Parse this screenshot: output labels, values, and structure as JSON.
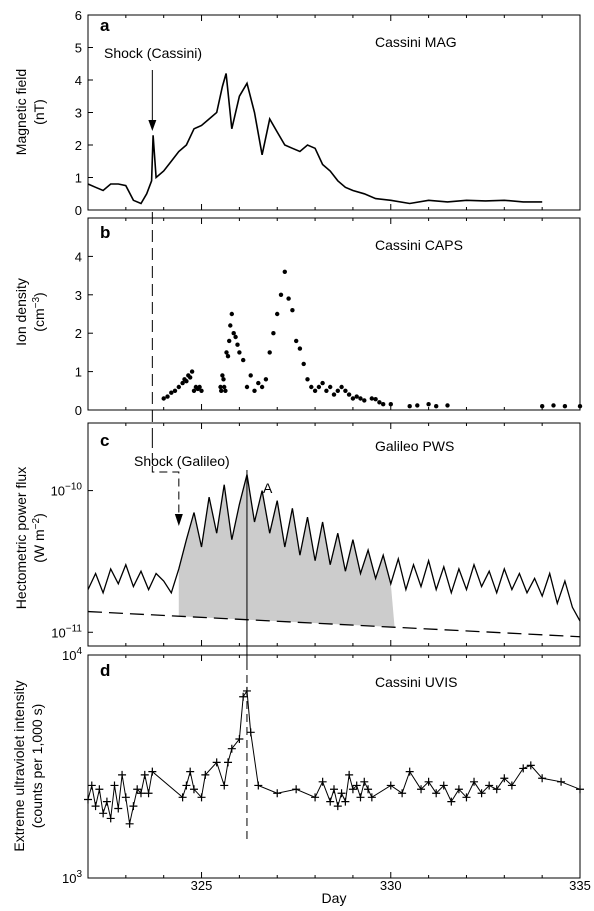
{
  "x_label": "Day",
  "x_ticks": [
    {
      "value": 325,
      "label": "325"
    },
    {
      "value": 330,
      "label": "330"
    },
    {
      "value": 335,
      "label": "335"
    }
  ],
  "day_range": [
    322,
    335
  ],
  "chart_data": [
    {
      "type": "line",
      "panel": "a",
      "title": "Cassini MAG",
      "ylabel_lines": [
        "Magnetic field",
        "(nT)"
      ],
      "ylim": [
        0,
        6
      ],
      "yticks": [
        {
          "value": 0,
          "label": "0"
        },
        {
          "value": 1,
          "label": "1"
        },
        {
          "value": 2,
          "label": "2"
        },
        {
          "value": 3,
          "label": "3"
        },
        {
          "value": 4,
          "label": "4"
        },
        {
          "value": 5,
          "label": "5"
        },
        {
          "value": 6,
          "label": "6"
        }
      ],
      "annotation": "Shock (Cassini)",
      "shock_day": 323.7,
      "series": [
        {
          "x": [
            322.0,
            322.2,
            322.4,
            322.6,
            322.8,
            323.0,
            323.2,
            323.4,
            323.55,
            323.68,
            323.72,
            323.8,
            324.0,
            324.2,
            324.4,
            324.6,
            324.8,
            325.0,
            325.2,
            325.4,
            325.55,
            325.65,
            325.8,
            326.0,
            326.2,
            326.4,
            326.6,
            326.8,
            327.0,
            327.2,
            327.4,
            327.6,
            327.8,
            328.0,
            328.2,
            328.4,
            328.6,
            328.8,
            329.0,
            329.3,
            329.6,
            330.0,
            330.5,
            331.0,
            331.5,
            332.0,
            332.5,
            333.0,
            333.5,
            334.0
          ],
          "y": [
            0.8,
            0.7,
            0.6,
            0.8,
            0.8,
            0.75,
            0.3,
            0.2,
            0.5,
            0.9,
            2.3,
            1.0,
            1.2,
            1.5,
            1.8,
            2.0,
            2.5,
            2.6,
            2.8,
            3.0,
            3.8,
            4.2,
            2.5,
            3.5,
            3.9,
            3.0,
            1.7,
            2.8,
            2.4,
            2.0,
            1.9,
            1.8,
            2.0,
            1.9,
            1.4,
            1.2,
            0.9,
            0.7,
            0.6,
            0.5,
            0.35,
            0.3,
            0.2,
            0.3,
            0.25,
            0.3,
            0.28,
            0.3,
            0.25,
            0.25
          ]
        }
      ]
    },
    {
      "type": "scatter",
      "panel": "b",
      "title": "Cassini CAPS",
      "ylabel_lines": [
        "Ion density",
        "(cm",
        "−3",
        ")"
      ],
      "ylim": [
        0,
        5
      ],
      "yticks": [
        {
          "value": 0,
          "label": "0"
        },
        {
          "value": 1,
          "label": "1"
        },
        {
          "value": 2,
          "label": "2"
        },
        {
          "value": 3,
          "label": "3"
        },
        {
          "value": 4,
          "label": "4"
        }
      ],
      "series": [
        {
          "x": [
            324.0,
            324.1,
            324.2,
            324.3,
            324.4,
            324.5,
            324.55,
            324.6,
            324.65,
            324.7,
            324.75,
            324.8,
            324.85,
            324.9,
            324.95,
            325.0,
            325.5,
            325.52,
            325.55,
            325.58,
            325.6,
            325.63,
            325.66,
            325.7,
            325.73,
            325.76,
            325.8,
            325.85,
            325.9,
            325.95,
            326.0,
            326.1,
            326.2,
            326.3,
            326.4,
            326.5,
            326.6,
            326.7,
            326.8,
            326.9,
            327.0,
            327.1,
            327.2,
            327.3,
            327.4,
            327.5,
            327.6,
            327.7,
            327.8,
            327.9,
            328.0,
            328.1,
            328.2,
            328.3,
            328.4,
            328.5,
            328.6,
            328.7,
            328.8,
            328.9,
            329.0,
            329.1,
            329.2,
            329.3,
            329.5,
            329.6,
            329.7,
            329.8,
            330.0,
            330.5,
            330.7,
            331.0,
            331.2,
            331.5,
            334.0,
            334.3,
            334.6,
            335.0
          ],
          "y": [
            0.3,
            0.35,
            0.45,
            0.5,
            0.6,
            0.7,
            0.8,
            0.75,
            0.9,
            0.85,
            1.0,
            0.5,
            0.6,
            0.55,
            0.6,
            0.5,
            0.6,
            0.5,
            0.9,
            0.8,
            0.6,
            0.5,
            1.5,
            1.4,
            1.8,
            2.2,
            2.5,
            2.0,
            1.9,
            1.7,
            1.5,
            1.3,
            0.6,
            0.9,
            0.5,
            0.7,
            0.6,
            0.8,
            1.5,
            2.0,
            2.5,
            3.0,
            3.6,
            2.9,
            2.6,
            1.8,
            1.6,
            1.2,
            0.8,
            0.6,
            0.5,
            0.6,
            0.7,
            0.5,
            0.6,
            0.4,
            0.5,
            0.6,
            0.5,
            0.4,
            0.3,
            0.35,
            0.3,
            0.25,
            0.3,
            0.28,
            0.2,
            0.15,
            0.15,
            0.1,
            0.12,
            0.15,
            0.1,
            0.12,
            0.1,
            0.12,
            0.1,
            0.1
          ]
        }
      ]
    },
    {
      "type": "line",
      "panel": "c",
      "title": "Galileo PWS",
      "ylabel_lines": [
        "Hectometric power flux",
        "(W m",
        "−2",
        ")"
      ],
      "yscale": "log",
      "ylim": [
        8e-12,
        3e-10
      ],
      "yticks": [
        {
          "value": 1e-11,
          "base": "10",
          "exp": "−11"
        },
        {
          "value": 1e-10,
          "base": "10",
          "exp": "−10"
        }
      ],
      "annotations": {
        "shock": "Shock (Galileo)",
        "peak": "A"
      },
      "shock_day": 324.4,
      "peak_day": 326.2,
      "shaded_range": [
        324.4,
        330.1
      ],
      "background": {
        "x": [
          322,
          335
        ],
        "y": [
          1.4e-11,
          9.3e-12
        ]
      },
      "series": [
        {
          "x": [
            322.0,
            322.2,
            322.4,
            322.6,
            322.8,
            323.0,
            323.2,
            323.4,
            323.6,
            323.8,
            324.0,
            324.2,
            324.4,
            324.6,
            324.8,
            325.0,
            325.2,
            325.4,
            325.6,
            325.8,
            326.0,
            326.2,
            326.4,
            326.6,
            326.8,
            327.0,
            327.2,
            327.4,
            327.6,
            327.8,
            328.0,
            328.2,
            328.4,
            328.6,
            328.8,
            329.0,
            329.2,
            329.4,
            329.6,
            329.8,
            330.0,
            330.2,
            330.4,
            330.6,
            330.8,
            331.0,
            331.2,
            331.4,
            331.6,
            331.8,
            332.0,
            332.2,
            332.4,
            332.6,
            332.8,
            333.0,
            333.2,
            333.4,
            333.6,
            333.8,
            334.0,
            334.2,
            334.4,
            334.6,
            334.8,
            335.0
          ],
          "y": [
            2e-11,
            2.6e-11,
            1.9e-11,
            2.8e-11,
            2.2e-11,
            3e-11,
            2.1e-11,
            2.7e-11,
            2e-11,
            2.6e-11,
            2.3e-11,
            1.9e-11,
            2.8e-11,
            4.5e-11,
            7e-11,
            4e-11,
            9e-11,
            5e-11,
            1.1e-10,
            4.5e-11,
            8e-11,
            1.3e-10,
            6e-11,
            1e-10,
            5e-11,
            8.5e-11,
            4e-11,
            7.5e-11,
            3.5e-11,
            6.5e-11,
            3.2e-11,
            6e-11,
            3e-11,
            5e-11,
            2.7e-11,
            4.5e-11,
            2.6e-11,
            3.8e-11,
            2.4e-11,
            3.5e-11,
            2.2e-11,
            3.3e-11,
            2e-11,
            3e-11,
            2.1e-11,
            3.2e-11,
            2e-11,
            2.9e-11,
            1.9e-11,
            2.8e-11,
            2e-11,
            3e-11,
            2.1e-11,
            2.7e-11,
            1.9e-11,
            2.8e-11,
            2e-11,
            2.6e-11,
            1.9e-11,
            2.4e-11,
            1.8e-11,
            2.6e-11,
            1.6e-11,
            2.3e-11,
            1.5e-11,
            1.2e-11
          ]
        }
      ]
    },
    {
      "type": "line",
      "panel": "d",
      "title": "Cassini UVIS",
      "ylabel_lines": [
        "Extreme ultraviolet intensity",
        "(counts per 1,000 s)"
      ],
      "yscale": "log",
      "ylim": [
        1000,
        10000
      ],
      "yticks": [
        {
          "value": 1000,
          "base": "10",
          "exp": "3"
        },
        {
          "value": 10000,
          "base": "10",
          "exp": "4"
        }
      ],
      "series": [
        {
          "x": [
            322.0,
            322.1,
            322.2,
            322.3,
            322.4,
            322.5,
            322.6,
            322.7,
            322.8,
            322.9,
            323.0,
            323.1,
            323.2,
            323.3,
            323.4,
            323.5,
            323.6,
            323.7,
            324.5,
            324.6,
            324.7,
            324.8,
            325.0,
            325.1,
            325.4,
            325.6,
            325.7,
            325.8,
            326.0,
            326.1,
            326.2,
            326.3,
            326.5,
            327.0,
            327.5,
            328.0,
            328.2,
            328.4,
            328.5,
            328.6,
            328.7,
            328.8,
            328.9,
            329.0,
            329.1,
            329.2,
            329.3,
            329.4,
            329.5,
            330.0,
            330.3,
            330.5,
            330.8,
            331.0,
            331.2,
            331.4,
            331.6,
            331.8,
            332.0,
            332.2,
            332.4,
            332.6,
            332.8,
            333.0,
            333.2,
            333.5,
            333.7,
            334.0,
            334.5,
            335.0
          ],
          "y": [
            2250,
            2600,
            2100,
            2500,
            1950,
            2200,
            1850,
            2600,
            2050,
            2900,
            2300,
            1750,
            2100,
            2500,
            2400,
            2900,
            2400,
            3000,
            2300,
            2600,
            3000,
            2500,
            2300,
            2900,
            3300,
            2600,
            3300,
            3800,
            4200,
            6500,
            6900,
            4500,
            2600,
            2400,
            2500,
            2300,
            2700,
            2200,
            2500,
            2100,
            2400,
            2200,
            2900,
            2500,
            2600,
            2300,
            2700,
            2500,
            2300,
            2600,
            2400,
            3000,
            2500,
            2700,
            2400,
            2600,
            2200,
            2500,
            2300,
            2700,
            2400,
            2600,
            2500,
            2800,
            2600,
            3100,
            3200,
            2800,
            2700,
            2500
          ]
        }
      ]
    }
  ]
}
